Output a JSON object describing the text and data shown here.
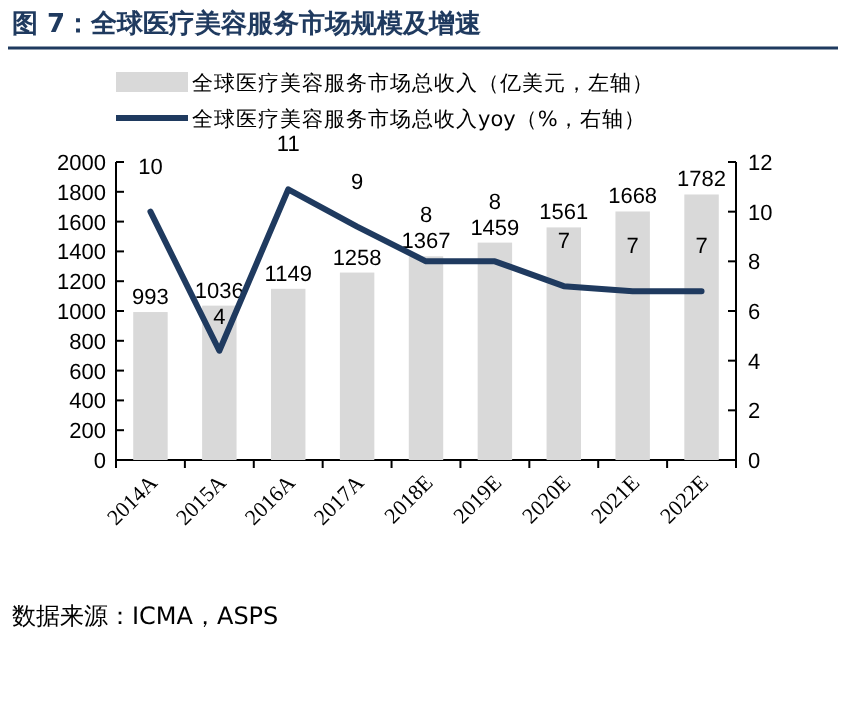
{
  "chart_data": {
    "type": "bar",
    "title": "图 7：全球医疗美容服务市场规模及增速",
    "categories": [
      "2014A",
      "2015A",
      "2016A",
      "2017A",
      "2018E",
      "2019E",
      "2020E",
      "2021E",
      "2022E"
    ],
    "series": [
      {
        "name": "全球医疗美容服务市场总收入（亿美元，左轴）",
        "color": "#d9d9d9",
        "values": [
          993,
          1036,
          1149,
          1258,
          1367,
          1459,
          1561,
          1668,
          1782
        ],
        "value_labels": [
          "993",
          "1036",
          "1149",
          "1258",
          "1367",
          "1459",
          "1561",
          "1668",
          "1782"
        ]
      },
      {
        "name": "全球医疗美容服务市场总收入yoy（%，右轴）",
        "type": "line",
        "axis": "y2",
        "color": "#1f3a5f",
        "values": [
          10,
          4.4,
          10.9,
          9.4,
          8.0,
          8.0,
          7.0,
          6.8,
          6.8
        ],
        "value_labels": [
          "10",
          "4",
          "11",
          "9",
          "8",
          "8",
          "7",
          "7",
          "7"
        ]
      }
    ],
    "ylim": [
      0,
      2000
    ],
    "yticks": [
      0,
      200,
      400,
      600,
      800,
      1000,
      1200,
      1400,
      1600,
      1800,
      2000
    ],
    "y2lim": [
      0,
      12
    ],
    "y2ticks": [
      0,
      2,
      4,
      6,
      8,
      10,
      12
    ],
    "legend": "top",
    "grid": false,
    "marker": "none",
    "line_style": "solid",
    "annotations": [
      "数据来源：ICMA，ASPS"
    ]
  }
}
